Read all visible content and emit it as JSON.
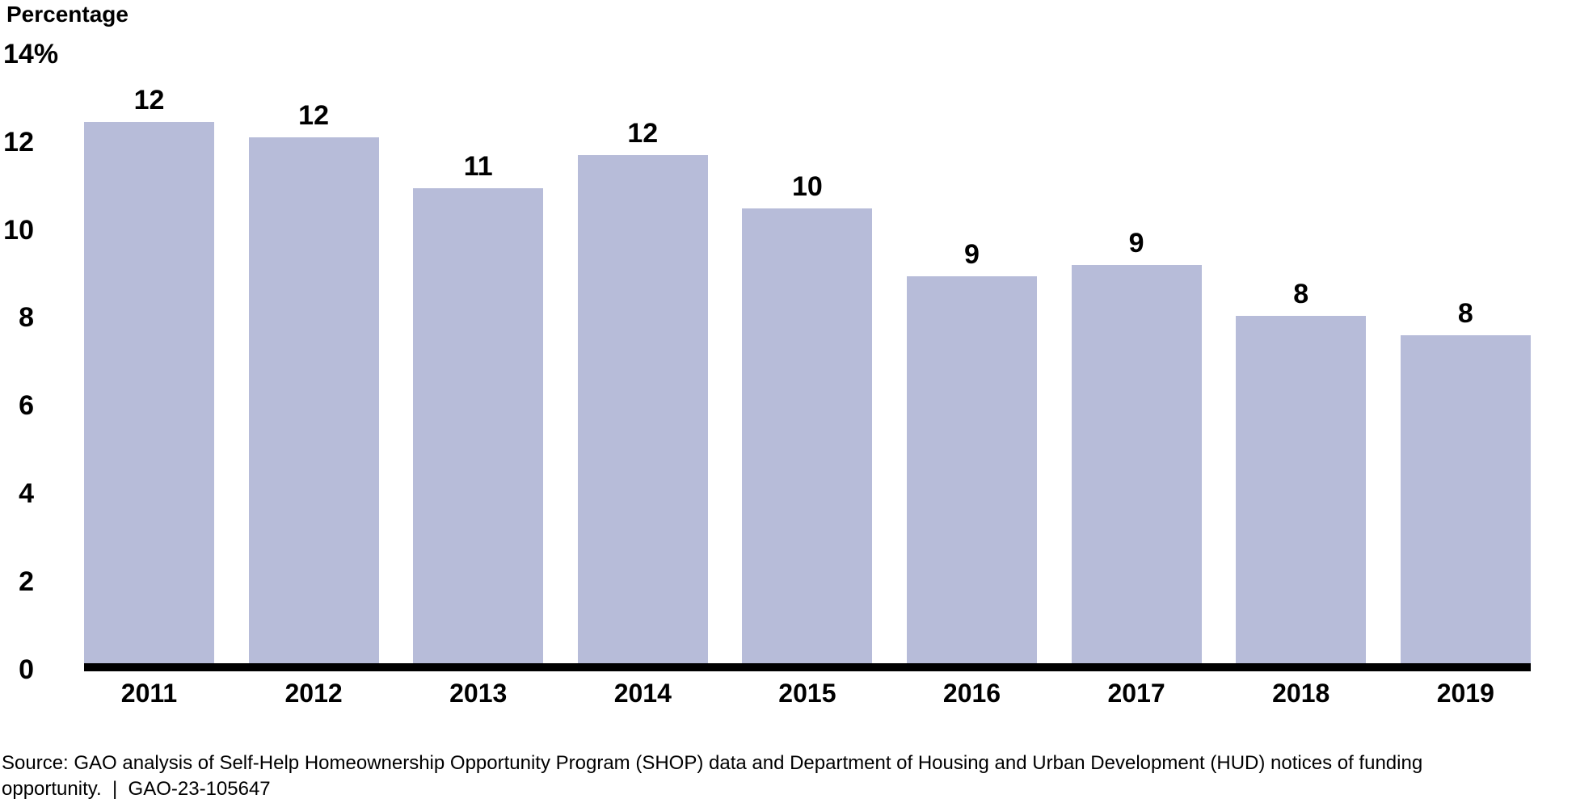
{
  "chart_data": {
    "type": "bar",
    "title": "Percentage",
    "categories": [
      "2011",
      "2012",
      "2013",
      "2014",
      "2015",
      "2016",
      "2017",
      "2018",
      "2019"
    ],
    "values": [
      12,
      12,
      11,
      12,
      10,
      9,
      9,
      8,
      8
    ],
    "bar_heights_estimated": [
      12.4,
      12.05,
      10.9,
      11.65,
      10.45,
      8.9,
      9.15,
      8.0,
      7.55
    ],
    "xlabel": "",
    "ylabel": "Percentage",
    "ylim": [
      0,
      14
    ],
    "yticks": [
      0,
      2,
      4,
      6,
      8,
      10,
      12,
      14
    ],
    "ytick_labels": [
      "0",
      "2",
      "4",
      "6",
      "8",
      "10",
      "12",
      "14%"
    ],
    "grid": false,
    "legend": "none",
    "bar_color": "#b7bcd9",
    "axis_color": "#000000",
    "label_color": "#000000"
  },
  "source": {
    "line1": "Source: GAO analysis of Self-Help Homeownership Opportunity Program (SHOP) data and Department of Housing and Urban Development (HUD) notices of funding",
    "line2": "opportunity.  |  GAO-23-105647"
  }
}
